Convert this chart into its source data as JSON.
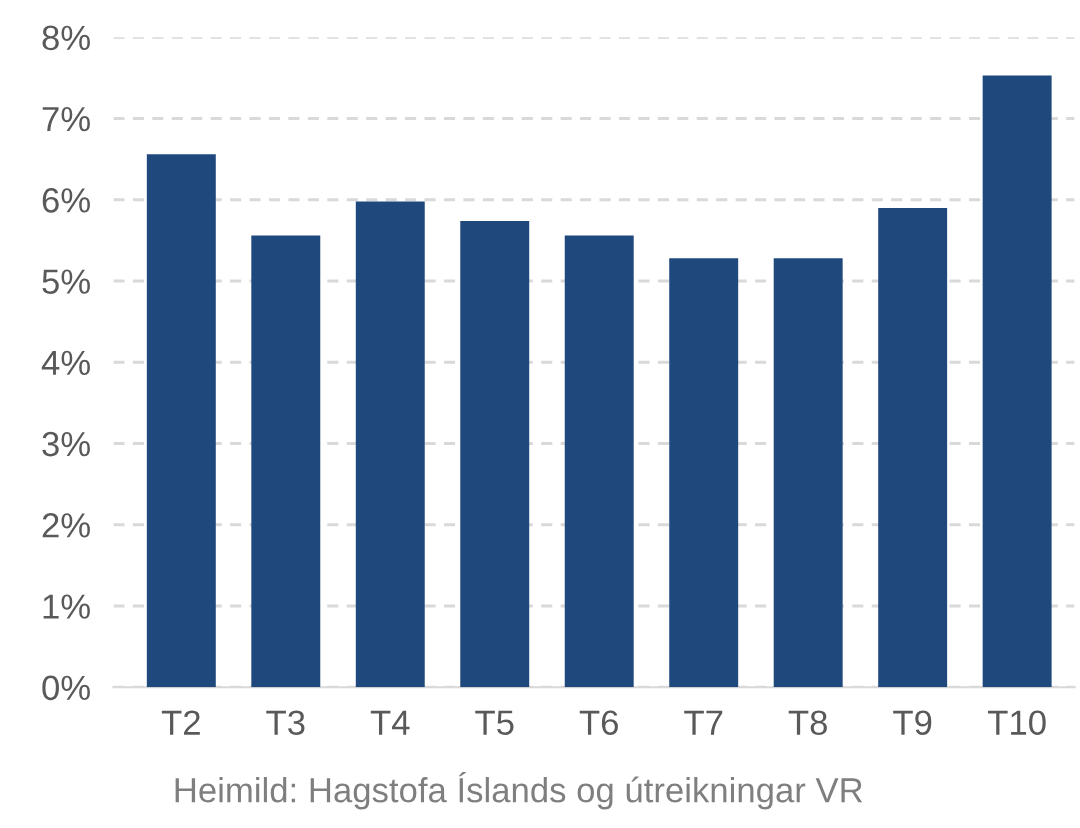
{
  "chart_data": {
    "type": "bar",
    "categories": [
      "T2",
      "T3",
      "T4",
      "T5",
      "T6",
      "T7",
      "T8",
      "T9",
      "T10"
    ],
    "values": [
      6.56,
      5.56,
      5.98,
      5.74,
      5.56,
      5.28,
      5.28,
      5.9,
      7.53
    ],
    "color": "#1f497d",
    "ylim": [
      0,
      8
    ],
    "yticks": [
      {
        "value": 0,
        "label": "0%"
      },
      {
        "value": 1,
        "label": "1%"
      },
      {
        "value": 2,
        "label": "2%"
      },
      {
        "value": 3,
        "label": "3%"
      },
      {
        "value": 4,
        "label": "4%"
      },
      {
        "value": 5,
        "label": "5%"
      },
      {
        "value": 6,
        "label": "6%"
      },
      {
        "value": 7,
        "label": "7%"
      },
      {
        "value": 8,
        "label": "8%"
      }
    ],
    "grid": "y",
    "annotations": [
      "Heimild: Hagstofa Íslands og útreikningar VR"
    ]
  }
}
